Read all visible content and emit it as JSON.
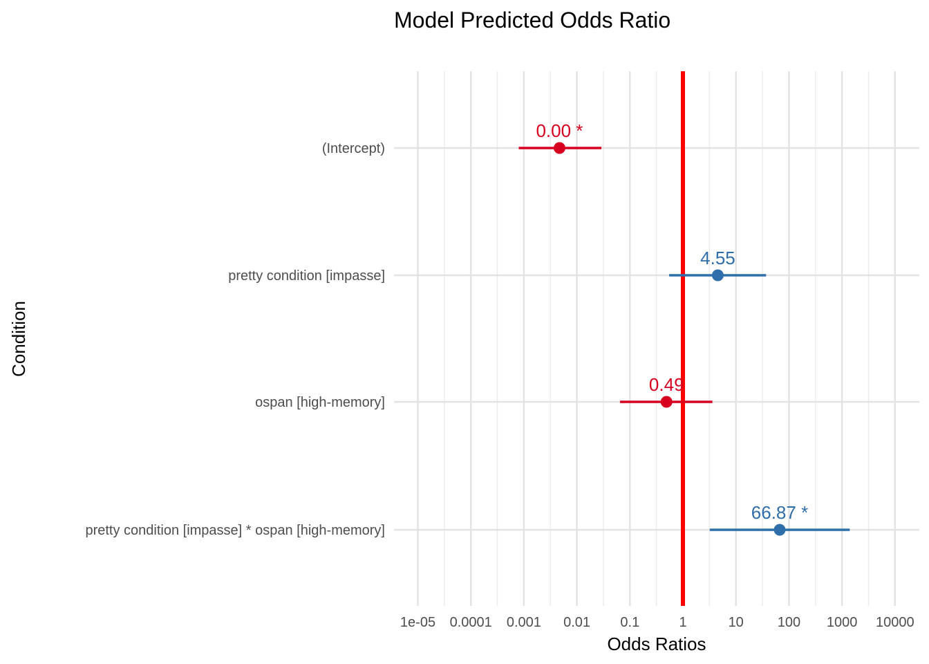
{
  "chart_data": {
    "type": "forest",
    "title": "Model Predicted Odds Ratio",
    "xlabel": "Odds Ratios",
    "ylabel": "Condition",
    "x_scale": "log10",
    "xlim": [
      5e-06,
      20000
    ],
    "x_ticks": [
      1e-05,
      0.0001,
      0.001,
      0.01,
      0.1,
      1,
      10,
      100,
      1000,
      10000
    ],
    "x_tick_labels": [
      "1e-05",
      "0.0001",
      "0.001",
      "0.01",
      "0.1",
      "1",
      "10",
      "100",
      "1000",
      "10000"
    ],
    "reference_line": 1,
    "grid": true,
    "colors": {
      "positive": "#2f6eaa",
      "negative": "#d7001f",
      "reference": "#ff0000"
    },
    "categories": [
      "(Intercept)",
      "pretty condition [impasse]",
      "ospan [high-memory]",
      "pretty condition [impasse] * ospan [high-memory]"
    ],
    "estimates": [
      0.0047,
      4.55,
      0.49,
      66.87
    ],
    "ci_low": [
      0.0008,
      0.55,
      0.065,
      3.2
    ],
    "ci_high": [
      0.029,
      37,
      3.6,
      1400
    ],
    "labels": [
      "0.00 *",
      "4.55",
      "0.49",
      "66.87 *"
    ]
  }
}
